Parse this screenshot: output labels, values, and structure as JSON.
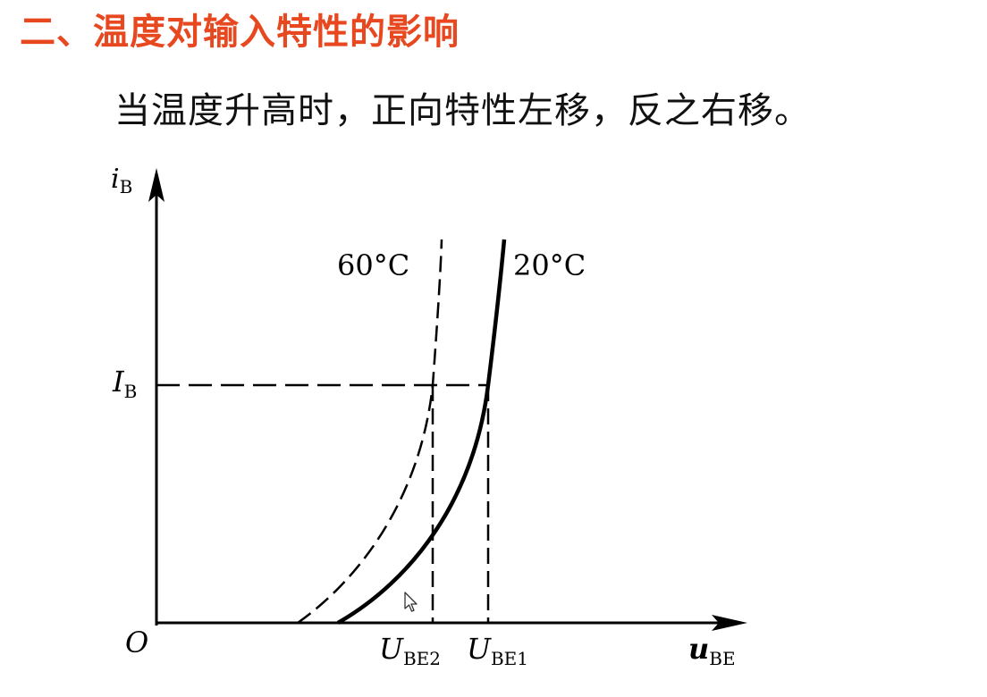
{
  "slide": {
    "heading": "二、温度对输入特性的影响",
    "subtitle": "当温度升高时，正向特性左移，反之右移。",
    "colors": {
      "heading": "#e8481f",
      "text": "#111111",
      "curve": "#000000",
      "background": "#ffffff"
    }
  },
  "diagram": {
    "y_axis": {
      "var": "i",
      "sub": "B"
    },
    "x_axis": {
      "var": "u",
      "sub": "BE"
    },
    "origin_label": "O",
    "ib_level": {
      "var": "I",
      "sub": "B"
    },
    "ube2": {
      "var": "U",
      "sub": "BE2"
    },
    "ube1": {
      "var": "U",
      "sub": "BE1"
    },
    "curve_60": {
      "label": "60°C",
      "style": "dashed"
    },
    "curve_20": {
      "label": "20°C",
      "style": "solid"
    }
  },
  "cursor": {
    "icon": "mouse-pointer-icon"
  }
}
